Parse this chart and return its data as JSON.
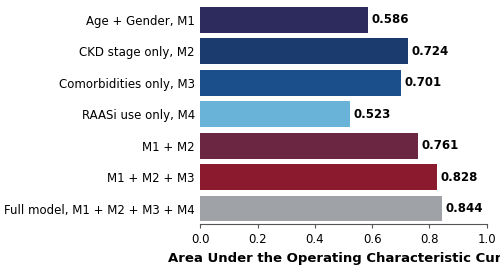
{
  "categories": [
    "Age + Gender, M1",
    "CKD stage only, M2",
    "Comorbidities only, M3",
    "RAASi use only, M4",
    "M1 + M2",
    "M1 + M2 + M3",
    "Full model, M1 + M2 + M3 + M4"
  ],
  "values": [
    0.586,
    0.724,
    0.701,
    0.523,
    0.761,
    0.828,
    0.844
  ],
  "colors": [
    "#2d2b5e",
    "#1b3a6e",
    "#1a4f8c",
    "#69b3d9",
    "#6b2641",
    "#8c1a2e",
    "#9fa3a8"
  ],
  "labels": [
    "0.586",
    "0.724",
    "0.701",
    "0.523",
    "0.761",
    "0.828",
    "0.844"
  ],
  "xlabel": "Area Under the Operating Characteristic Curve",
  "xlim": [
    0.0,
    1.0
  ],
  "xticks": [
    0.0,
    0.2,
    0.4,
    0.6,
    0.8,
    1.0
  ],
  "bar_height": 0.82,
  "label_fontsize": 8.5,
  "tick_fontsize": 8.5,
  "xlabel_fontsize": 9.5,
  "background_color": "#ffffff"
}
